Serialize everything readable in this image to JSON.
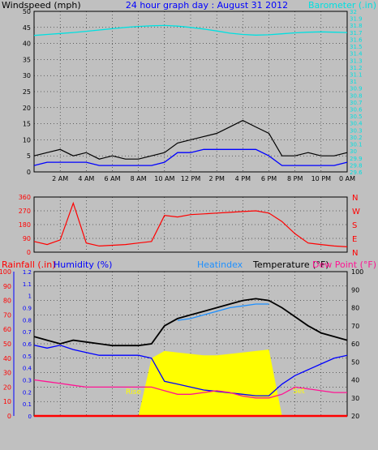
{
  "header": {
    "windspeed_label": "Windspeed (mph)",
    "title": "24 hour graph day : August 31 2012",
    "barometer_label": "Barometer (.in)"
  },
  "legend": {
    "rainfall": "Rainfall (.in)",
    "humidity": "Humidity (%)",
    "heatindex": "Heatindex",
    "temperature": "Temperature (°F)",
    "dewpoint": "Dew Point (°F)"
  },
  "annotations": {
    "rise": "Rise",
    "set": "Set"
  },
  "colors": {
    "windspeed": "#000000",
    "wind_avg": "#0000ff",
    "wind_gust_fill": "#808080",
    "barometer": "#00e0e0",
    "direction": "#ff0000",
    "temperature": "#000000",
    "heatindex": "#1e90ff",
    "humidity": "#0000ff",
    "dewpoint": "#ff1493",
    "solar": "#ffff00",
    "rainfall": "#ff0000"
  },
  "chart_data": [
    {
      "type": "line",
      "name": "wind-barometer",
      "x_ticks": [
        "2 AM",
        "4 AM",
        "6 AM",
        "8 AM",
        "10 AM",
        "12 PM",
        "2 PM",
        "4 PM",
        "6 PM",
        "8 PM",
        "10 PM",
        "0 AM"
      ],
      "y_left_ticks": [
        "0",
        "5",
        "10",
        "15",
        "20",
        "25",
        "30",
        "35",
        "40",
        "45",
        "50"
      ],
      "y_right_ticks": [
        "29.6",
        "29.8",
        "29.9",
        "30",
        "30.1",
        "30.2",
        "30.3",
        "30.4",
        "30.5",
        "30.6",
        "30.7",
        "30.8",
        "30.9",
        "31",
        "31.1",
        "31.2",
        "31.3",
        "31.4",
        "31.5",
        "31.6",
        "31.7",
        "31.8",
        "31.9",
        "32"
      ],
      "ylim_left": [
        0,
        50
      ],
      "grid": true,
      "x_hours": [
        0,
        1,
        2,
        3,
        4,
        5,
        6,
        7,
        8,
        9,
        10,
        11,
        12,
        13,
        14,
        15,
        16,
        17,
        18,
        19,
        20,
        21,
        22,
        23,
        24
      ],
      "series": [
        {
          "key": "windspeed",
          "values": [
            5,
            6,
            7,
            5,
            6,
            4,
            5,
            4,
            4,
            5,
            6,
            9,
            10,
            11,
            12,
            14,
            16,
            14,
            12,
            5,
            5,
            6,
            5,
            5,
            6
          ]
        },
        {
          "key": "wind_avg",
          "values": [
            2,
            3,
            3,
            3,
            3,
            2,
            2,
            2,
            2,
            2,
            3,
            6,
            6,
            7,
            7,
            7,
            7,
            7,
            5,
            2,
            2,
            2,
            2,
            2,
            3
          ]
        },
        {
          "key": "barometer",
          "values": [
            42.5,
            42.8,
            43.1,
            43.4,
            43.8,
            44.2,
            44.6,
            45,
            45.3,
            45.5,
            45.6,
            45.4,
            45,
            44.5,
            43.9,
            43.2,
            42.8,
            42.6,
            42.7,
            43,
            43.3,
            43.5,
            43.6,
            43.5,
            43.4
          ]
        }
      ]
    },
    {
      "type": "line",
      "name": "wind-direction",
      "y_left_ticks": [
        "0",
        "90",
        "180",
        "270",
        "360"
      ],
      "y_right_ticks": [
        "N",
        "E",
        "S",
        "W",
        "N"
      ],
      "ylim_left": [
        0,
        360
      ],
      "grid": true,
      "x_hours": [
        0,
        1,
        2,
        3,
        4,
        5,
        6,
        7,
        8,
        9,
        10,
        11,
        12,
        13,
        14,
        15,
        16,
        17,
        18,
        19,
        20,
        21,
        22,
        23,
        24
      ],
      "series": [
        {
          "key": "direction",
          "values": [
            70,
            50,
            80,
            320,
            60,
            40,
            45,
            50,
            60,
            70,
            240,
            230,
            245,
            250,
            255,
            260,
            265,
            270,
            255,
            200,
            120,
            60,
            50,
            40,
            35
          ]
        }
      ]
    },
    {
      "type": "line",
      "name": "temperature-humidity",
      "y_left_ticks": [
        "0",
        "10",
        "20",
        "30",
        "40",
        "50",
        "60",
        "70",
        "80",
        "90",
        "100"
      ],
      "y_left2_ticks": [
        "0",
        "0.1",
        "0.2",
        "0.3",
        "0.4",
        "0.5",
        "0.6",
        "0.7",
        "0.8",
        "0.9",
        "1",
        "1.1",
        "1.2"
      ],
      "y_right_ticks": [
        "20",
        "30",
        "40",
        "50",
        "60",
        "70",
        "80",
        "90",
        "100"
      ],
      "ylim_left": [
        0,
        100
      ],
      "ylim_right": [
        20,
        100
      ],
      "grid": true,
      "x_hours": [
        0,
        1,
        2,
        3,
        4,
        5,
        6,
        7,
        8,
        9,
        10,
        11,
        12,
        13,
        14,
        15,
        16,
        17,
        18,
        19,
        20,
        21,
        22,
        23,
        24
      ],
      "series": [
        {
          "key": "temperature",
          "values": [
            64,
            62,
            60,
            62,
            61,
            60,
            59,
            59,
            59,
            60,
            70,
            74,
            76,
            78,
            80,
            82,
            84,
            85,
            84,
            80,
            75,
            70,
            66,
            64,
            62
          ]
        },
        {
          "key": "heatindex",
          "values": [
            null,
            null,
            null,
            null,
            null,
            null,
            null,
            null,
            null,
            null,
            null,
            73,
            74,
            76,
            78,
            80,
            81,
            82,
            82,
            null,
            null,
            null,
            null,
            null,
            null
          ]
        },
        {
          "key": "humidity",
          "values": [
            49,
            47,
            49,
            46,
            44,
            42,
            42,
            42,
            42,
            40,
            24,
            22,
            20,
            18,
            17,
            16,
            15,
            14,
            14,
            22,
            28,
            32,
            36,
            40,
            42
          ]
        },
        {
          "key": "dewpoint",
          "values": [
            40,
            39,
            38,
            37,
            36,
            36,
            36,
            36,
            36,
            36,
            34,
            32,
            32,
            33,
            34,
            33,
            31,
            30,
            30,
            32,
            36,
            35,
            34,
            33,
            33
          ]
        },
        {
          "key": "solar",
          "values": [
            0,
            0,
            0,
            0,
            0,
            0,
            0,
            0,
            0,
            40,
            45,
            44,
            43,
            42,
            42,
            43,
            44,
            45,
            46,
            0,
            0,
            0,
            0,
            0,
            0
          ]
        },
        {
          "key": "rainfall",
          "values": [
            0,
            0,
            0,
            0,
            0,
            0,
            0,
            0,
            0,
            0,
            0,
            0,
            0,
            0,
            0,
            0,
            0,
            0,
            0,
            0,
            0,
            0,
            0,
            0,
            0
          ]
        }
      ]
    }
  ]
}
